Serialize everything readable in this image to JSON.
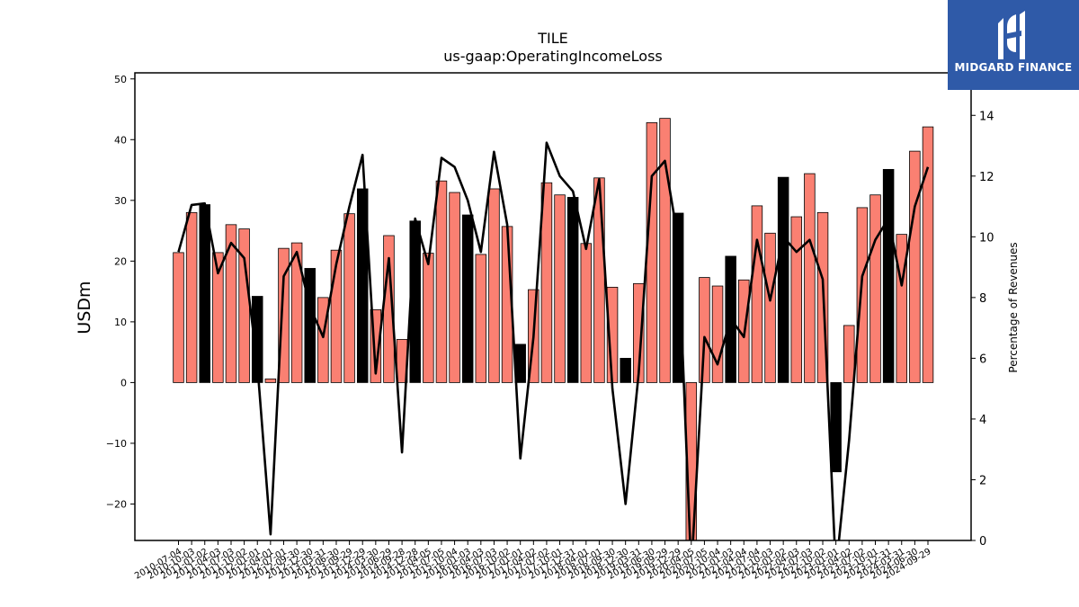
{
  "chart_data": {
    "type": "bar",
    "title": "TILE",
    "subtitle": "us-gaap:OperatingIncomeLoss",
    "ylabel": "USDm",
    "y2label": "Percentage of Revenues",
    "ylim": [
      -26,
      51
    ],
    "y2lim": [
      0,
      15.4
    ],
    "yticks": [
      -20,
      -10,
      0,
      10,
      20,
      30,
      40,
      50
    ],
    "y2ticks": [
      0,
      2,
      4,
      6,
      8,
      10,
      12,
      14
    ],
    "colors": {
      "quarter": "#fa8072",
      "annual": "#000000",
      "line": "#000000"
    },
    "categories": [
      "2010-07-04",
      "2010-10-03",
      "2011-01-02",
      "2011-04-03",
      "2011-07-03",
      "2011-10-02",
      "2012-01-01",
      "2012-04-01",
      "2012-07-01",
      "2012-09-30",
      "2012-12-30",
      "2013-03-31",
      "2013-06-30",
      "2013-09-29",
      "2013-12-29",
      "2014-03-30",
      "2014-06-29",
      "2014-09-28",
      "2014-12-28",
      "2015-04-05",
      "2015-07-05",
      "2015-10-04",
      "2016-01-03",
      "2016-04-03",
      "2016-07-03",
      "2016-10-02",
      "2017-01-01",
      "2017-04-02",
      "2017-07-02",
      "2017-10-01",
      "2017-12-31",
      "2018-04-01",
      "2018-07-01",
      "2018-09-30",
      "2018-12-30",
      "2019-03-31",
      "2019-06-30",
      "2019-09-29",
      "2019-12-29",
      "2020-04-05",
      "2020-07-05",
      "2020-10-04",
      "2021-01-03",
      "2021-04-04",
      "2021-07-04",
      "2021-10-03",
      "2022-01-02",
      "2022-04-03",
      "2022-07-03",
      "2022-10-02",
      "2023-01-01",
      "2023-04-02",
      "2023-07-02",
      "2023-10-01",
      "2023-12-31",
      "2024-03-31",
      "2024-06-30",
      "2024-09-29"
    ],
    "series": [
      {
        "name": "",
        "kind": "bar",
        "values": [
          21.4,
          28,
          29.3,
          21.4,
          26,
          25.3,
          14.2,
          0.6,
          22.1,
          23,
          18.8,
          14,
          21.8,
          27.8,
          31.9,
          12,
          24.2,
          7.1,
          26.6,
          21.3,
          33.2,
          31.3,
          27.6,
          21.1,
          31.9,
          25.7,
          6.3,
          15.3,
          32.9,
          30.9,
          30.5,
          22.9,
          33.7,
          15.7,
          4,
          16.3,
          42.8,
          43.5,
          27.9,
          -26,
          17.3,
          15.9,
          20.8,
          16.9,
          29.1,
          24.6,
          33.8,
          27.3,
          34.4,
          28,
          -14.7,
          9.4,
          28.8,
          30.9,
          35.1,
          24.4,
          38.1,
          42.1
        ],
        "annual_flags": [
          0,
          0,
          1,
          0,
          0,
          0,
          1,
          0,
          0,
          0,
          1,
          0,
          0,
          0,
          1,
          0,
          0,
          0,
          1,
          0,
          0,
          0,
          1,
          0,
          0,
          0,
          1,
          0,
          0,
          0,
          1,
          0,
          0,
          0,
          1,
          0,
          0,
          0,
          1,
          0,
          0,
          0,
          1,
          0,
          0,
          0,
          1,
          0,
          0,
          0,
          1,
          0,
          0,
          0,
          1,
          0,
          0,
          0
        ]
      },
      {
        "name": "",
        "kind": "line",
        "axis": "right",
        "values": [
          9.5,
          11.05,
          11.1,
          8.8,
          9.8,
          9.3,
          5.8,
          0.2,
          8.7,
          9.5,
          7.7,
          6.7,
          9.1,
          11,
          12.7,
          5.5,
          9.3,
          2.9,
          10.6,
          9.1,
          12.6,
          12.3,
          11.2,
          9.5,
          12.8,
          10.4,
          2.7,
          6.7,
          13.1,
          12,
          11.5,
          9.6,
          11.9,
          5,
          1.2,
          5.5,
          12,
          12.5,
          9.9,
          -1,
          6.7,
          5.8,
          7.3,
          6.7,
          9.9,
          7.9,
          10,
          9.5,
          9.9,
          8.6,
          -1,
          3.3,
          8.7,
          9.9,
          10.6,
          8.4,
          11,
          12.3
        ]
      }
    ]
  },
  "logo": {
    "text": "MIDGARD FINANCE",
    "icon": "midgard-logo-icon"
  }
}
